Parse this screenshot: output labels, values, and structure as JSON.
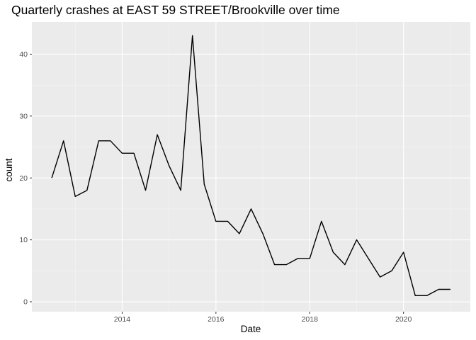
{
  "chart_data": {
    "type": "line",
    "title": "Quarterly crashes at EAST 59 STREET/Brookville over time",
    "xlabel": "Date",
    "ylabel": "count",
    "x_ticks": [
      "2014",
      "2016",
      "2018",
      "2020"
    ],
    "y_ticks": [
      "0",
      "10",
      "20",
      "30",
      "40"
    ],
    "ylim": [
      -1.6,
      45.2
    ],
    "grid": true,
    "series": [
      {
        "line_color": "#000000",
        "x": [
          "2012-07-01",
          "2012-10-01",
          "2013-01-01",
          "2013-04-01",
          "2013-07-01",
          "2013-10-01",
          "2014-01-01",
          "2014-04-01",
          "2014-07-01",
          "2014-10-01",
          "2015-01-01",
          "2015-04-01",
          "2015-07-01",
          "2015-10-01",
          "2016-01-01",
          "2016-04-01",
          "2016-07-01",
          "2016-10-01",
          "2017-01-01",
          "2017-04-01",
          "2017-07-01",
          "2017-10-01",
          "2018-01-01",
          "2018-04-01",
          "2018-07-01",
          "2018-10-01",
          "2019-01-01",
          "2019-04-01",
          "2019-07-01",
          "2019-10-01",
          "2020-01-01",
          "2020-04-01",
          "2020-07-01",
          "2020-10-01",
          "2021-01-01"
        ],
        "values": [
          20,
          26,
          17,
          18,
          26,
          26,
          24,
          24,
          18,
          27,
          22,
          18,
          43,
          19,
          13,
          13,
          11,
          15,
          11,
          6,
          6,
          7,
          7,
          13,
          8,
          6,
          10,
          7,
          4,
          5,
          8,
          1,
          1,
          2,
          2
        ]
      }
    ]
  },
  "colors": {
    "panel_bg": "#ebebeb",
    "grid_major": "#ffffff",
    "grid_minor": "#f5f5f5",
    "line": "#000000",
    "tick_text": "#4d4d4d",
    "tick_mark": "#333333"
  }
}
